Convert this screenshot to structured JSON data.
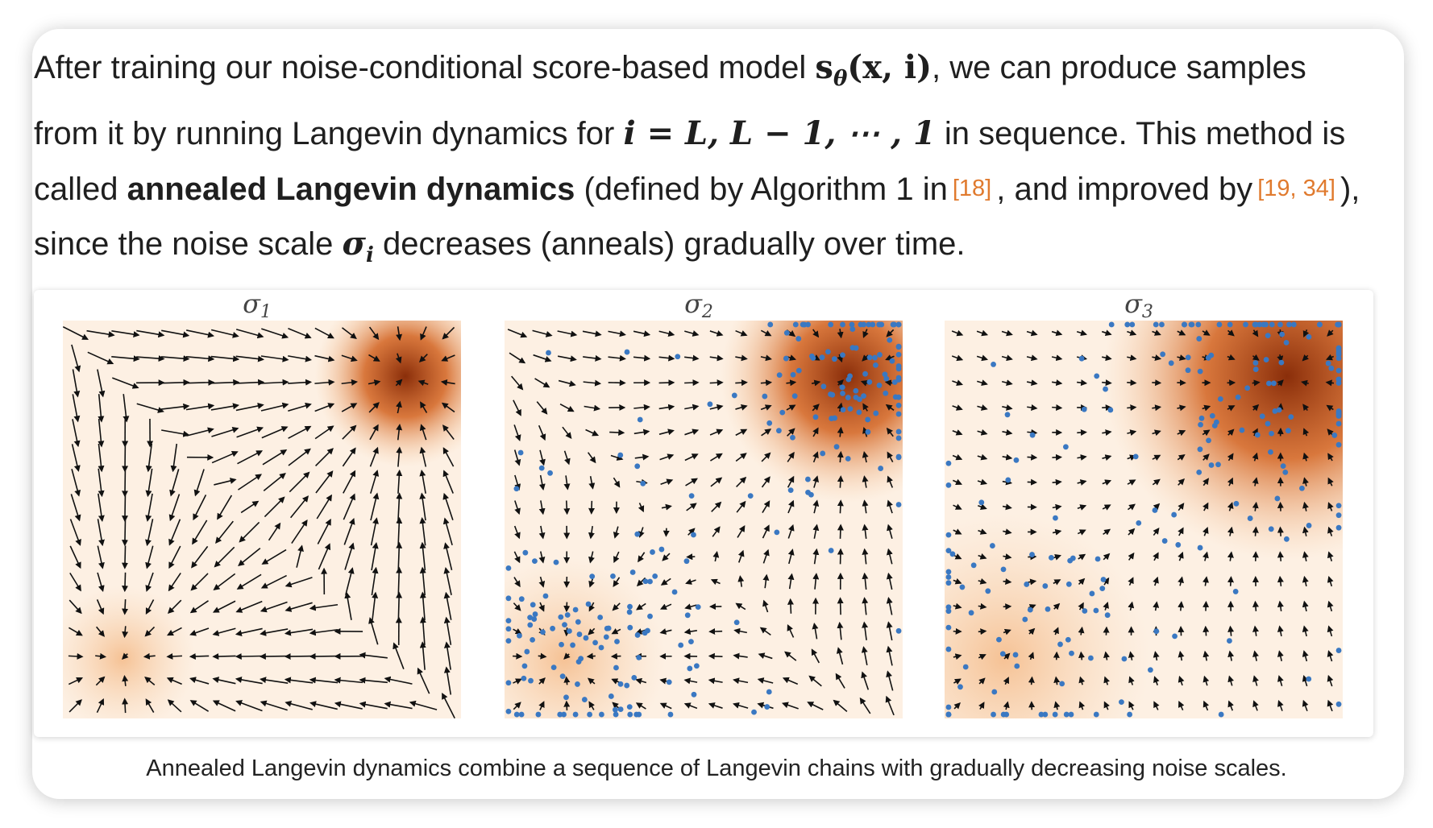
{
  "paragraph": {
    "t1": "After training our noise-conditional score-based model ",
    "m1_s": "s",
    "m1_sub": "θ",
    "m1_args": "(x, i)",
    "t2": ", we can produce samples from it by running Langevin dynamics for ",
    "m2": "i = L, L − 1, ⋯ , 1",
    "t3": " in sequence. This method is called ",
    "bold": "annealed Langevin dynamics",
    "t4": " (defined by Algorithm 1 in",
    "cite1": "[18]",
    "t5": ", and improved by",
    "cite2": "[19, 34]",
    "t6": "), since the noise scale ",
    "m3_sigma": "σ",
    "m3_sub": "i",
    "t7": " decreases (anneals) gradually over time."
  },
  "panels": [
    {
      "label": "σ",
      "sub": "1",
      "noise": 0.12,
      "points": 0
    },
    {
      "label": "σ",
      "sub": "2",
      "noise": 0.22,
      "points": 220
    },
    {
      "label": "σ",
      "sub": "3",
      "noise": 0.38,
      "points": 200
    }
  ],
  "caption": "Annealed Langevin dynamics combine a sequence of Langevin chains with gradually decreasing noise scales.",
  "colors": {
    "density_dark": "#8a2e0a",
    "density_light": "#fdf0e3",
    "point": "#3a78c2",
    "arrow": "#111111",
    "cite": "#e07a2e"
  }
}
